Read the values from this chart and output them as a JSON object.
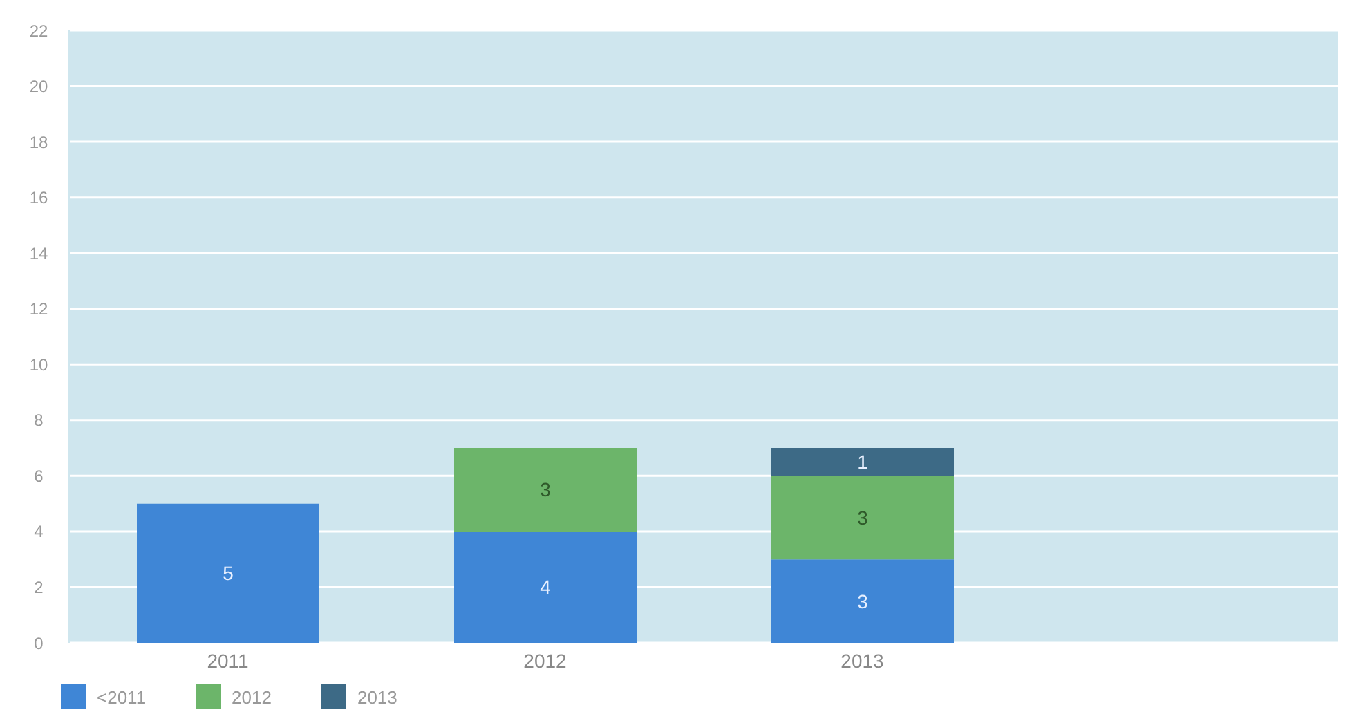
{
  "chart_data": {
    "type": "bar",
    "stacked": true,
    "categories": [
      "2011",
      "2012",
      "2013",
      null
    ],
    "series": [
      {
        "name": "<2011",
        "color": "#3f86d6",
        "values": [
          5,
          4,
          3,
          null
        ]
      },
      {
        "name": "2012",
        "color": "#6cb56a",
        "values": [
          null,
          3,
          3,
          null
        ]
      },
      {
        "name": "2013",
        "color": "#3d6a86",
        "values": [
          null,
          null,
          1,
          null
        ]
      }
    ],
    "ylim": [
      0,
      22
    ],
    "yticks": [
      0,
      2,
      4,
      6,
      8,
      10,
      12,
      14,
      16,
      18,
      20,
      22
    ],
    "grid": "y",
    "legend": "bottom left",
    "data_labels": true
  }
}
